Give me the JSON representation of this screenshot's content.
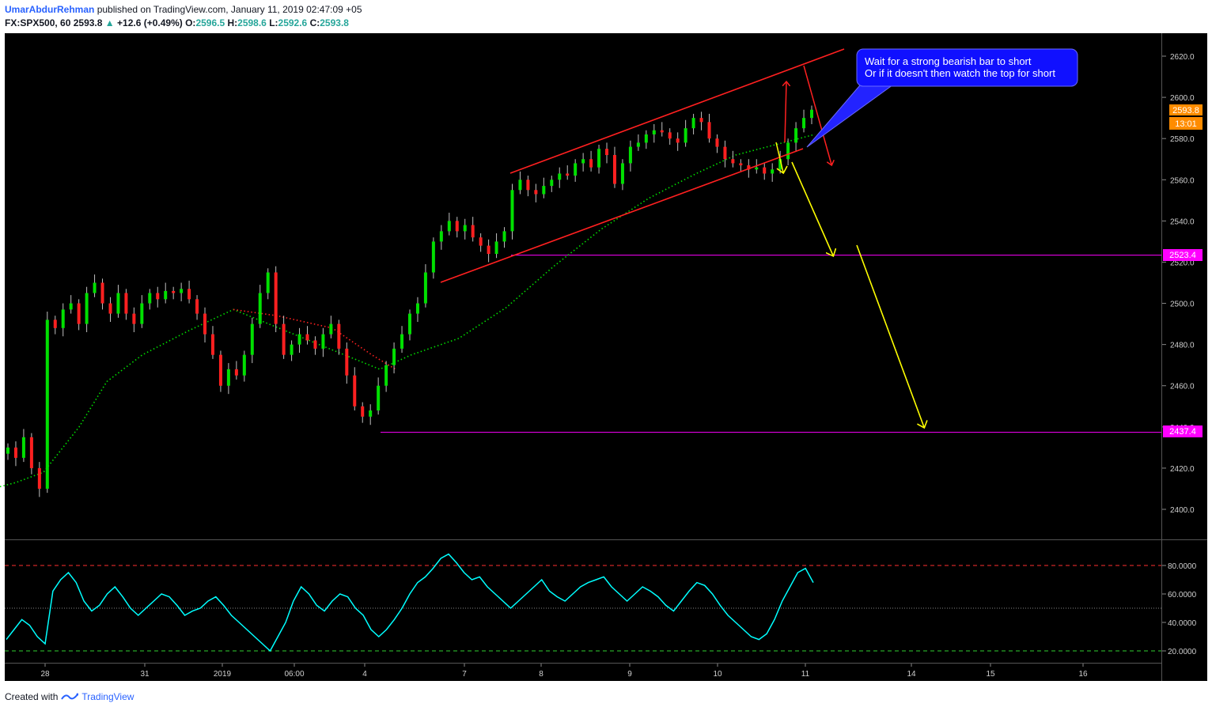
{
  "header": {
    "author": "UmarAbdurRehman",
    "published": "published on TradingView.com, January 11, 2019 02:47:09 +05",
    "symbol": "FX:SPX500, 60",
    "last": "2593.8",
    "arrow": "▲",
    "change": "+12.6 (+0.49%)",
    "o_label": "O:",
    "o_val": "2596.5",
    "h_label": "H:",
    "h_val": "2598.6",
    "l_label": "L:",
    "l_val": "2592.6",
    "c_label": "C:",
    "c_val": "2593.8"
  },
  "annotation": {
    "line1": "Wait for a strong bearish bar to short",
    "line2": "Or if it doesn't then watch the top for short"
  },
  "footer": {
    "created": "Created with",
    "brand": "TradingView"
  },
  "chart_data": {
    "type": "candlestick",
    "price_axis": {
      "min": 2390,
      "max": 2630,
      "ticks": [
        2620.0,
        2600.0,
        2580.0,
        2560.0,
        2540.0,
        2520.0,
        2500.0,
        2480.0,
        2460.0,
        2440.0,
        2420.0,
        2400.0
      ]
    },
    "price_labels": {
      "last": "2593.8",
      "countdown": "13:01",
      "level1": "2523.4",
      "level2": "2437.4"
    },
    "levels": [
      2523.4,
      2437.4
    ],
    "x_labels": [
      "28",
      "31",
      "2019",
      "06:00",
      "4",
      "7",
      "8",
      "9",
      "10",
      "11",
      "14",
      "15",
      "16"
    ],
    "path": [
      2430,
      2425,
      2435,
      2420,
      2410,
      2492,
      2488,
      2497,
      2500,
      2490,
      2505,
      2510,
      2500,
      2495,
      2505,
      2495,
      2490,
      2500,
      2505,
      2502,
      2506,
      2505,
      2507,
      2502,
      2495,
      2485,
      2475,
      2460,
      2468,
      2465,
      2475,
      2490,
      2505,
      2515,
      2490,
      2475,
      2480,
      2485,
      2482,
      2478,
      2485,
      2490,
      2478,
      2465,
      2450,
      2445,
      2448,
      2460,
      2470,
      2478,
      2485,
      2495,
      2500,
      2515,
      2530,
      2535,
      2540,
      2535,
      2538,
      2532,
      2528,
      2524,
      2530,
      2535,
      2555,
      2560,
      2555,
      2553,
      2557,
      2560,
      2563,
      2562,
      2568,
      2570,
      2566,
      2575,
      2572,
      2558,
      2568,
      2576,
      2578,
      2582,
      2584,
      2583,
      2580,
      2578,
      2585,
      2590,
      2588,
      2580,
      2576,
      2570,
      2568,
      2567,
      2565,
      2566,
      2563,
      2565,
      2570,
      2578,
      2585,
      2590,
      2594
    ],
    "ma_green": [
      [
        0,
        2411
      ],
      [
        20,
        2413
      ],
      [
        55,
        2418
      ],
      [
        100,
        2440
      ],
      [
        135,
        2462
      ],
      [
        180,
        2475
      ],
      [
        240,
        2487
      ],
      [
        295,
        2497
      ],
      [
        480,
        2468
      ],
      [
        520,
        2475
      ],
      [
        580,
        2483
      ],
      [
        640,
        2498
      ],
      [
        700,
        2518
      ],
      [
        760,
        2536
      ],
      [
        820,
        2551
      ],
      [
        880,
        2563
      ],
      [
        930,
        2572
      ],
      [
        980,
        2577
      ],
      [
        1030,
        2582
      ]
    ],
    "ma_red": [
      [
        295,
        2497
      ],
      [
        350,
        2494
      ],
      [
        420,
        2488
      ],
      [
        470,
        2475
      ],
      [
        500,
        2468
      ]
    ],
    "rsi": {
      "levels": [
        80,
        50,
        20
      ],
      "ticks": [
        "80.0000",
        "60.0000",
        "40.0000",
        "20.0000"
      ],
      "values": [
        28,
        35,
        42,
        38,
        30,
        25,
        62,
        70,
        75,
        68,
        55,
        48,
        52,
        60,
        65,
        58,
        50,
        45,
        50,
        55,
        60,
        58,
        52,
        45,
        48,
        50,
        55,
        58,
        52,
        45,
        40,
        35,
        30,
        25,
        20,
        30,
        40,
        55,
        65,
        60,
        52,
        48,
        55,
        60,
        58,
        50,
        45,
        35,
        30,
        35,
        42,
        50,
        60,
        68,
        72,
        78,
        85,
        88,
        82,
        75,
        70,
        72,
        65,
        60,
        55,
        50,
        55,
        60,
        65,
        70,
        62,
        58,
        55,
        60,
        65,
        68,
        70,
        72,
        65,
        60,
        55,
        60,
        65,
        62,
        58,
        52,
        48,
        55,
        62,
        68,
        66,
        60,
        52,
        45,
        40,
        35,
        30,
        28,
        32,
        42,
        55,
        65,
        75,
        78,
        68
      ]
    }
  }
}
